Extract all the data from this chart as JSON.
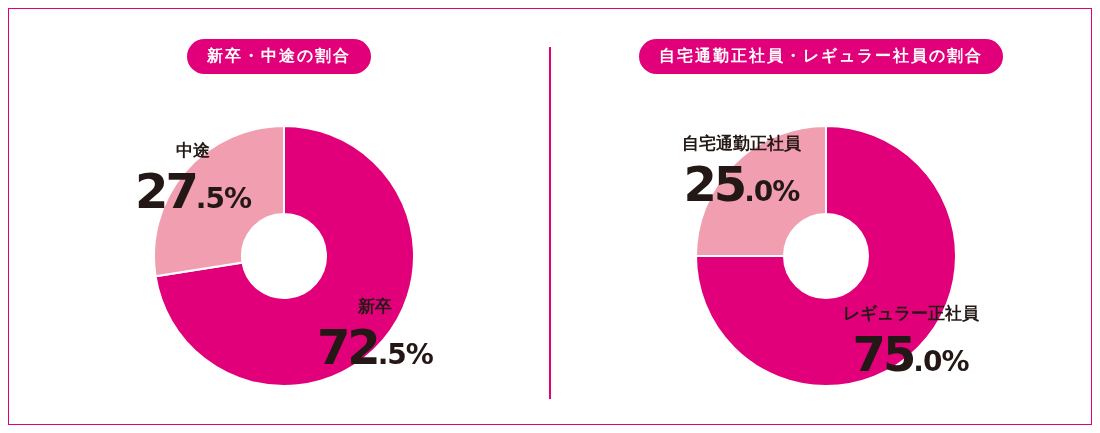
{
  "chart_data": [
    {
      "type": "donut",
      "title": "新卒・中途の割合",
      "categories": [
        "新卒",
        "中途"
      ],
      "values": [
        72.5,
        27.5
      ],
      "colors": [
        "#e2007a",
        "#f19fb0"
      ],
      "value_labels": [
        "72.5%",
        "27.5%"
      ],
      "legend": false
    },
    {
      "type": "donut",
      "title": "自宅通勤正社員・レギュラー社員の割合",
      "categories": [
        "レギュラー正社員",
        "自宅通勤正社員"
      ],
      "values": [
        75.0,
        25.0
      ],
      "colors": [
        "#e2007a",
        "#f19fb0"
      ],
      "value_labels": [
        "75.0%",
        "25.0%"
      ],
      "legend": false
    }
  ]
}
